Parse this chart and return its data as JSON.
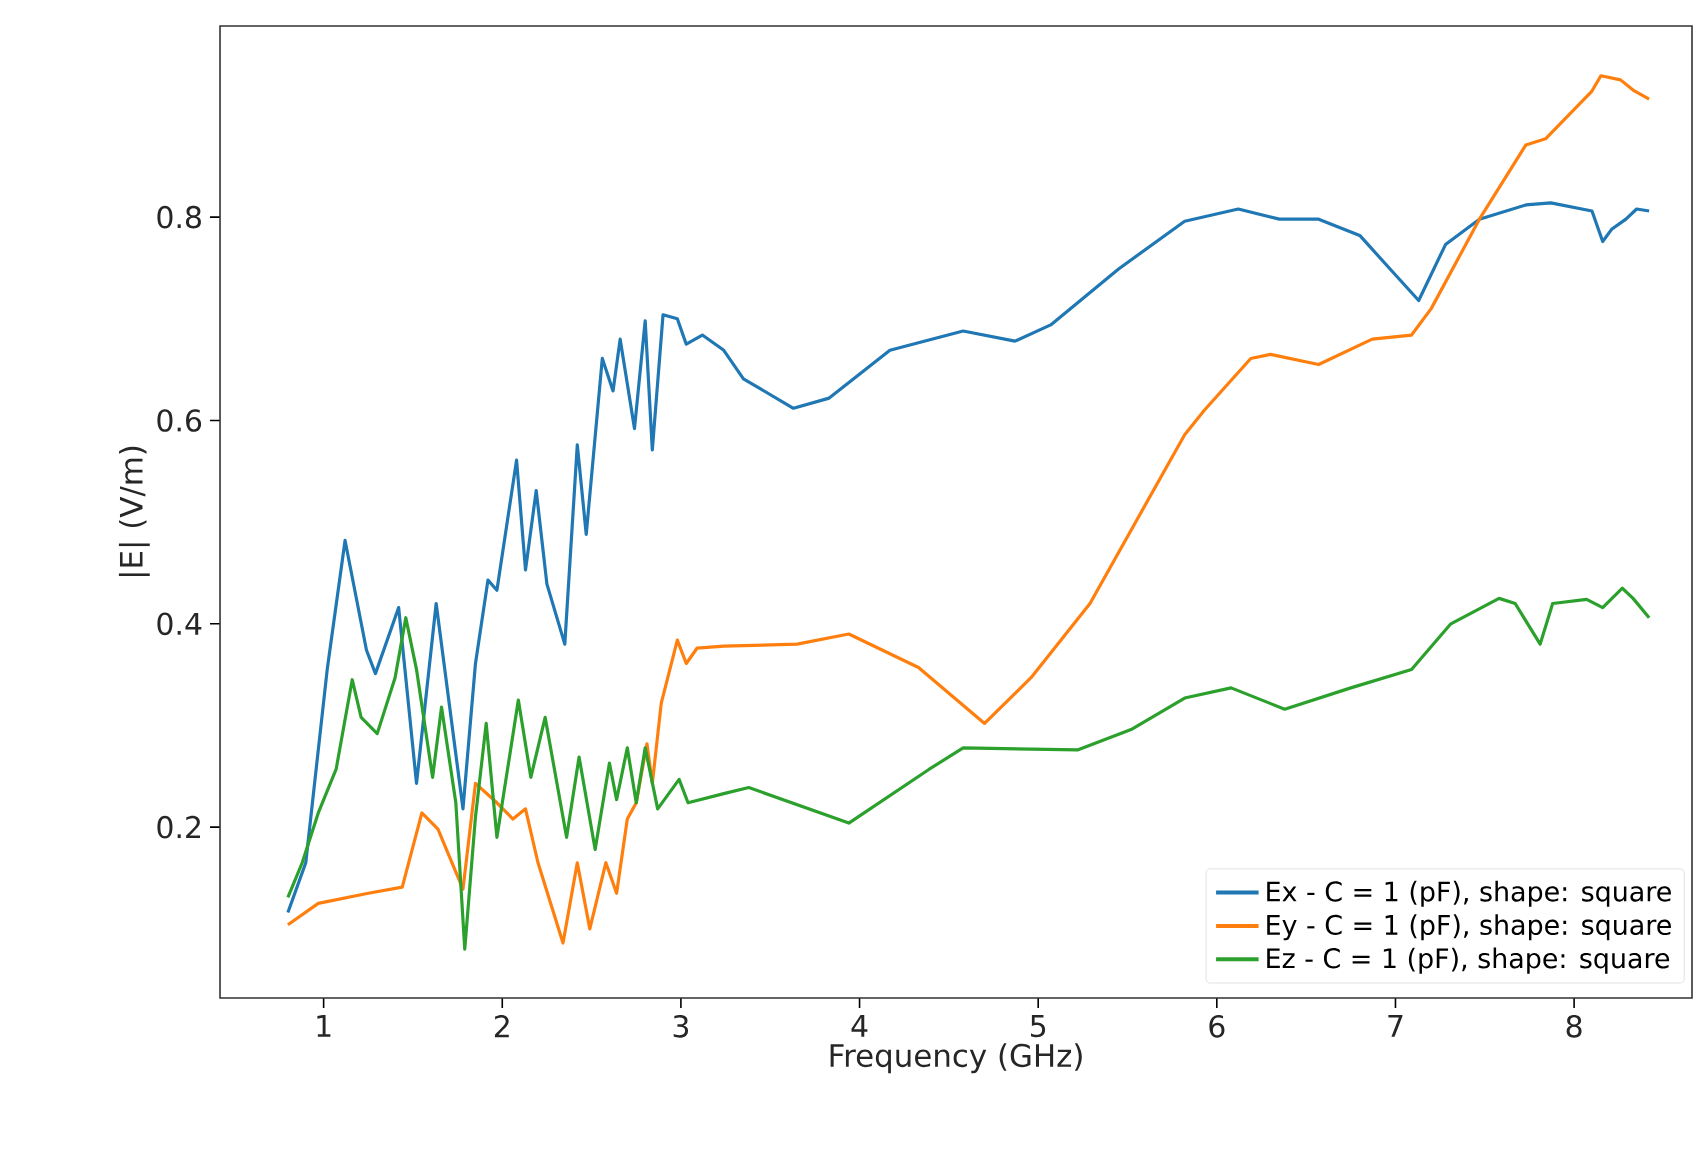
{
  "chart_data": {
    "type": "line",
    "xlabel": "Frequency (GHz)",
    "ylabel": "|E| (V/m)",
    "xlim": [
      0.42,
      8.66
    ],
    "ylim": [
      0.032,
      0.988
    ],
    "xticks": [
      1,
      2,
      3,
      4,
      5,
      6,
      7,
      8
    ],
    "yticks": [
      0.2,
      0.4,
      0.6,
      0.8
    ],
    "grid": false,
    "legend": "bottom right",
    "marker": "none",
    "line_style": "solid",
    "series": [
      {
        "name": "Ex - C = 1 (pF), shape: square",
        "color": "#1f77b4",
        "x": [
          0.8,
          0.9,
          1.02,
          1.12,
          1.24,
          1.29,
          1.42,
          1.52,
          1.63,
          1.78,
          1.85,
          1.92,
          1.97,
          2.08,
          2.13,
          2.19,
          2.25,
          2.35,
          2.42,
          2.47,
          2.56,
          2.62,
          2.66,
          2.74,
          2.8,
          2.84,
          2.9,
          2.98,
          3.03,
          3.12,
          3.24,
          3.35,
          3.63,
          3.83,
          4.17,
          4.58,
          4.87,
          5.07,
          5.45,
          5.82,
          6.12,
          6.35,
          6.57,
          6.8,
          6.98,
          7.13,
          7.28,
          7.47,
          7.73,
          7.87,
          8.1,
          8.16,
          8.21,
          8.29,
          8.35,
          8.42
        ],
        "values": [
          0.116,
          0.165,
          0.355,
          0.482,
          0.374,
          0.351,
          0.416,
          0.243,
          0.42,
          0.218,
          0.361,
          0.443,
          0.433,
          0.561,
          0.453,
          0.531,
          0.439,
          0.38,
          0.576,
          0.488,
          0.661,
          0.629,
          0.68,
          0.592,
          0.698,
          0.571,
          0.704,
          0.7,
          0.675,
          0.684,
          0.669,
          0.641,
          0.612,
          0.622,
          0.669,
          0.688,
          0.678,
          0.694,
          0.749,
          0.796,
          0.808,
          0.798,
          0.798,
          0.782,
          0.747,
          0.718,
          0.773,
          0.798,
          0.812,
          0.814,
          0.806,
          0.776,
          0.788,
          0.798,
          0.808,
          0.806
        ]
      },
      {
        "name": "Ey - C = 1 (pF), shape: square",
        "color": "#ff7f0e",
        "x": [
          0.8,
          0.97,
          1.25,
          1.44,
          1.55,
          1.64,
          1.78,
          1.85,
          1.97,
          2.06,
          2.13,
          2.2,
          2.34,
          2.42,
          2.49,
          2.58,
          2.64,
          2.7,
          2.75,
          2.81,
          2.84,
          2.89,
          2.98,
          3.03,
          3.09,
          3.24,
          3.65,
          3.94,
          4.33,
          4.7,
          4.96,
          5.29,
          5.82,
          5.93,
          6.19,
          6.3,
          6.57,
          6.87,
          7.09,
          7.2,
          7.47,
          7.73,
          7.84,
          8.1,
          8.15,
          8.26,
          8.33,
          8.42
        ],
        "values": [
          0.104,
          0.125,
          0.135,
          0.141,
          0.214,
          0.198,
          0.139,
          0.243,
          0.224,
          0.208,
          0.218,
          0.165,
          0.086,
          0.165,
          0.1,
          0.165,
          0.135,
          0.208,
          0.224,
          0.282,
          0.243,
          0.322,
          0.384,
          0.361,
          0.376,
          0.378,
          0.38,
          0.39,
          0.357,
          0.302,
          0.347,
          0.42,
          0.586,
          0.61,
          0.661,
          0.665,
          0.655,
          0.68,
          0.684,
          0.71,
          0.798,
          0.871,
          0.877,
          0.924,
          0.939,
          0.935,
          0.925,
          0.916
        ]
      },
      {
        "name": "Ez - C = 1 (pF), shape: square",
        "color": "#2ca02c",
        "x": [
          0.8,
          0.88,
          0.97,
          1.07,
          1.16,
          1.21,
          1.3,
          1.4,
          1.46,
          1.52,
          1.61,
          1.66,
          1.74,
          1.79,
          1.85,
          1.91,
          1.97,
          2.09,
          2.16,
          2.24,
          2.36,
          2.43,
          2.52,
          2.6,
          2.64,
          2.7,
          2.75,
          2.8,
          2.87,
          2.99,
          3.04,
          3.24,
          3.38,
          3.94,
          4.39,
          4.58,
          5.22,
          5.52,
          5.82,
          6.08,
          6.38,
          6.75,
          7.09,
          7.31,
          7.58,
          7.67,
          7.81,
          7.88,
          8.07,
          8.16,
          8.27,
          8.33,
          8.42
        ],
        "values": [
          0.131,
          0.165,
          0.214,
          0.257,
          0.345,
          0.308,
          0.292,
          0.347,
          0.406,
          0.355,
          0.249,
          0.318,
          0.224,
          0.08,
          0.21,
          0.302,
          0.19,
          0.325,
          0.249,
          0.308,
          0.19,
          0.269,
          0.178,
          0.263,
          0.227,
          0.278,
          0.224,
          0.278,
          0.218,
          0.247,
          0.224,
          0.233,
          0.239,
          0.204,
          0.257,
          0.278,
          0.276,
          0.296,
          0.327,
          0.337,
          0.316,
          0.337,
          0.355,
          0.4,
          0.425,
          0.42,
          0.38,
          0.42,
          0.424,
          0.416,
          0.435,
          0.425,
          0.406
        ]
      }
    ]
  }
}
